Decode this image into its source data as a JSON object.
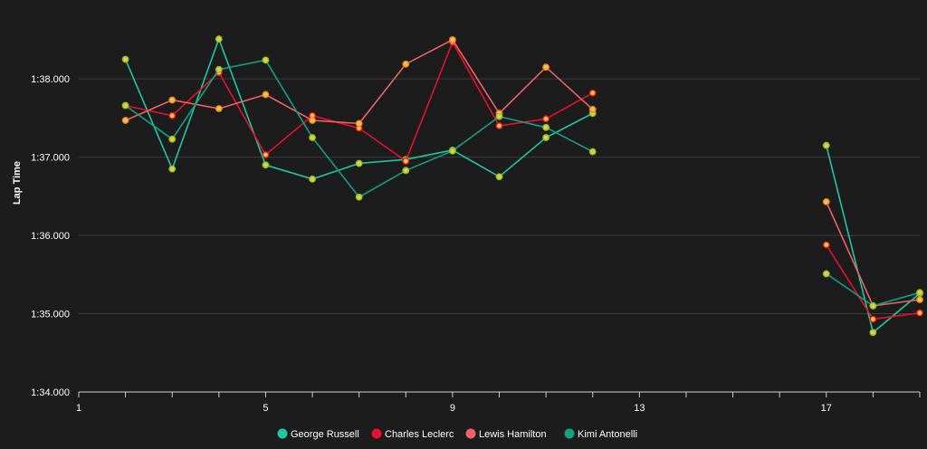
{
  "chart_data": {
    "type": "line",
    "ylabel": "Lap Time",
    "xlabel": "",
    "x_ticks": [
      1,
      5,
      9,
      13,
      17
    ],
    "xlim": [
      1,
      19
    ],
    "y_ticks": [
      "1:34.000",
      "1:35.000",
      "1:36.000",
      "1:37.000",
      "1:38.000"
    ],
    "ylim_seconds": [
      94.0,
      98.8
    ],
    "grid": true,
    "legend_position": "bottom",
    "point_fill": "#f5c542",
    "series": [
      {
        "name": "George Russell",
        "color": "#1ec8a5",
        "marker_stroke": "#7cc832",
        "points": [
          [
            2,
            98.25
          ],
          [
            3,
            96.85
          ],
          [
            4,
            98.51
          ],
          [
            5,
            96.9
          ],
          [
            6,
            96.72
          ],
          [
            7,
            96.92
          ],
          [
            8,
            96.97
          ],
          [
            9,
            97.09
          ],
          [
            10,
            96.75
          ],
          [
            11,
            97.25
          ],
          [
            12,
            97.56
          ],
          [
            17,
            97.15
          ],
          [
            18,
            94.76
          ],
          [
            19,
            95.26
          ]
        ]
      },
      {
        "name": "Charles Leclerc",
        "color": "#e8102e",
        "marker_stroke": "#e8102e",
        "points": [
          [
            2,
            97.66
          ],
          [
            3,
            97.53
          ],
          [
            4,
            98.08
          ],
          [
            5,
            97.03
          ],
          [
            6,
            97.53
          ],
          [
            7,
            97.37
          ],
          [
            8,
            96.95
          ],
          [
            9,
            98.47
          ],
          [
            10,
            97.4
          ],
          [
            11,
            97.49
          ],
          [
            12,
            97.82
          ],
          [
            17,
            95.88
          ],
          [
            18,
            94.93
          ],
          [
            19,
            95.01
          ]
        ]
      },
      {
        "name": "Lewis Hamilton",
        "color": "#f06262",
        "marker_stroke": "#f08030",
        "points": [
          [
            2,
            97.47
          ],
          [
            3,
            97.73
          ],
          [
            4,
            97.62
          ],
          [
            5,
            97.8
          ],
          [
            6,
            97.47
          ],
          [
            7,
            97.43
          ],
          [
            8,
            98.19
          ],
          [
            9,
            98.5
          ],
          [
            10,
            97.56
          ],
          [
            11,
            98.15
          ],
          [
            12,
            97.61
          ],
          [
            17,
            96.43
          ],
          [
            18,
            95.1
          ],
          [
            19,
            95.18
          ]
        ]
      },
      {
        "name": "Kimi Antonelli",
        "color": "#14a085",
        "marker_stroke": "#7cc832",
        "points": [
          [
            2,
            97.66
          ],
          [
            3,
            97.23
          ],
          [
            4,
            98.12
          ],
          [
            5,
            98.24
          ],
          [
            6,
            97.25
          ],
          [
            7,
            96.49
          ],
          [
            8,
            96.83
          ],
          [
            9,
            97.08
          ],
          [
            10,
            97.52
          ],
          [
            11,
            97.38
          ],
          [
            12,
            97.07
          ],
          [
            17,
            95.51
          ],
          [
            18,
            95.1
          ],
          [
            19,
            95.27
          ]
        ]
      }
    ]
  }
}
